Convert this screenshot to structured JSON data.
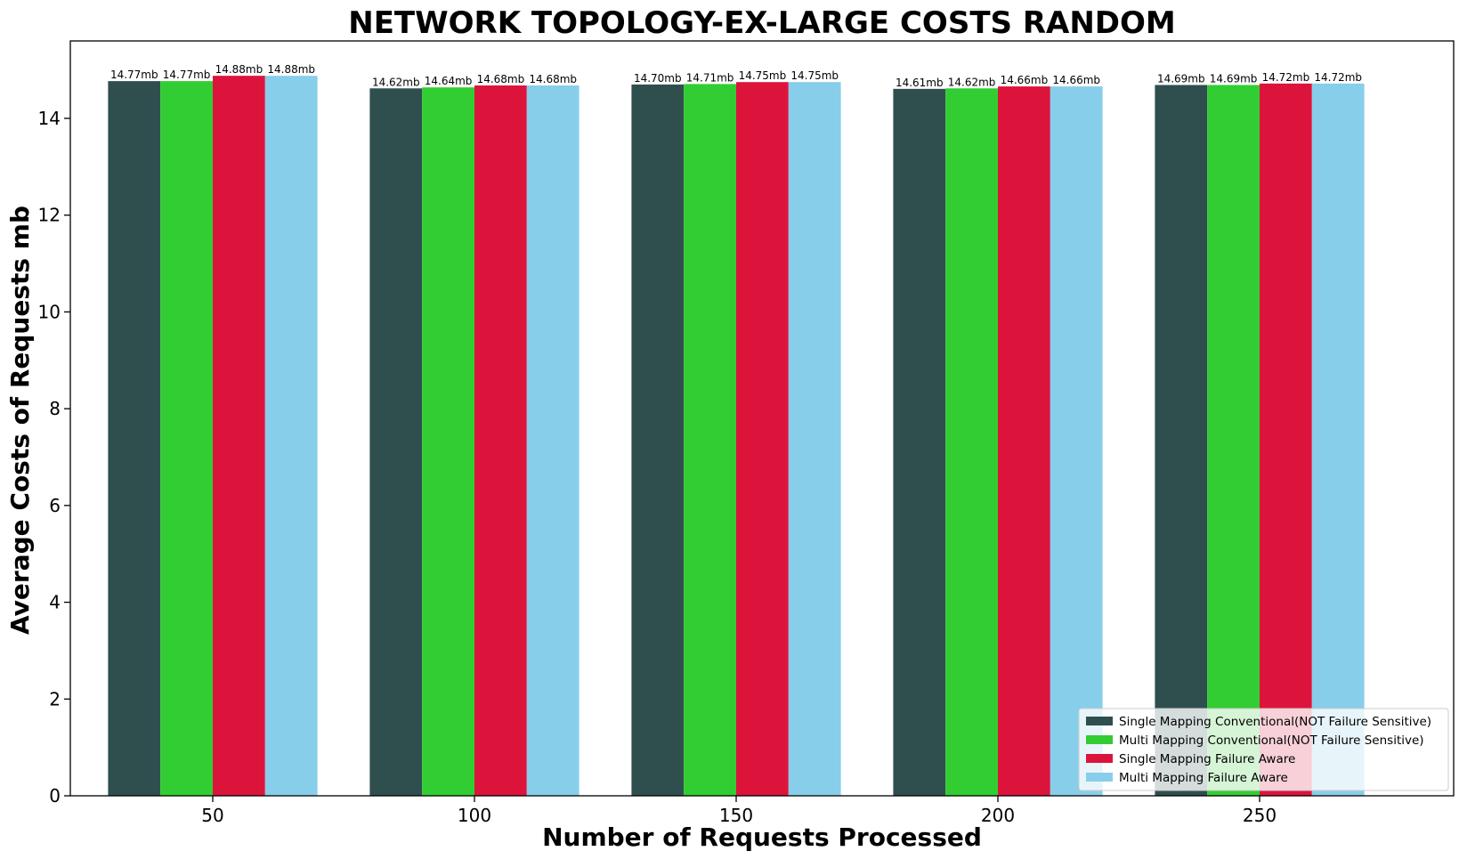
{
  "chart_data": {
    "type": "bar",
    "title": "NETWORK TOPOLOGY-EX-LARGE COSTS RANDOM",
    "xlabel": "Number of Requests Processed",
    "ylabel": "Average Costs of Requests mb",
    "categories": [
      "50",
      "100",
      "150",
      "200",
      "250"
    ],
    "ylim": [
      0,
      15.6
    ],
    "yticks": [
      0,
      2,
      4,
      6,
      8,
      10,
      12,
      14
    ],
    "ytick_labels": [
      "0",
      "2",
      "4",
      "6",
      "8",
      "10",
      "12",
      "14"
    ],
    "grid": false,
    "legend_position": "bottom-right",
    "value_suffix": "mb",
    "series": [
      {
        "name": "Single Mapping Conventional(NOT Failure Sensitive)",
        "color": "#2F4F4F",
        "values": [
          14.77,
          14.62,
          14.7,
          14.61,
          14.69
        ],
        "labels": [
          "14.77mb",
          "14.62mb",
          "14.70mb",
          "14.61mb",
          "14.69mb"
        ]
      },
      {
        "name": "Multi Mapping Conventional(NOT Failure Sensitive)",
        "color": "#32CD32",
        "values": [
          14.77,
          14.64,
          14.71,
          14.62,
          14.69
        ],
        "labels": [
          "14.77mb",
          "14.64mb",
          "14.71mb",
          "14.62mb",
          "14.69mb"
        ]
      },
      {
        "name": "Single Mapping Failure Aware",
        "color": "#DC143C",
        "values": [
          14.88,
          14.68,
          14.75,
          14.66,
          14.72
        ],
        "labels": [
          "14.88mb",
          "14.68mb",
          "14.75mb",
          "14.66mb",
          "14.72mb"
        ]
      },
      {
        "name": "Multi Mapping Failure Aware",
        "color": "#87CEEB",
        "values": [
          14.88,
          14.68,
          14.75,
          14.66,
          14.72
        ],
        "labels": [
          "14.88mb",
          "14.68mb",
          "14.75mb",
          "14.66mb",
          "14.72mb"
        ]
      }
    ]
  }
}
